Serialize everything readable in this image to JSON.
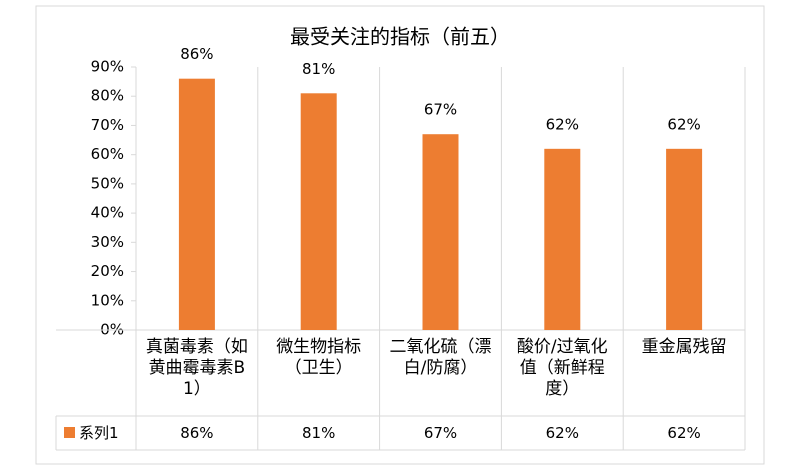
{
  "chart_data": {
    "type": "bar",
    "title": "最受关注的指标（前五）",
    "categories": [
      "真菌毒素（如黄曲霉毒素B1）",
      "微生物指标（卫生）",
      "二氧化硫（漂白/防腐）",
      "酸价/过氧化值（新鲜程度）",
      "重金属残留"
    ],
    "series": [
      {
        "name": "系列1",
        "color": "#ed7d31",
        "values": [
          86,
          81,
          67,
          62,
          62
        ],
        "value_labels": [
          "86%",
          "81%",
          "67%",
          "62%",
          "62%"
        ]
      }
    ],
    "ylim": [
      0,
      90
    ],
    "yticks": [
      {
        "value": 0,
        "label": "0%"
      },
      {
        "value": 10,
        "label": "10%"
      },
      {
        "value": 20,
        "label": "20%"
      },
      {
        "value": 30,
        "label": "30%"
      },
      {
        "value": 40,
        "label": "40%"
      },
      {
        "value": 50,
        "label": "50%"
      },
      {
        "value": 60,
        "label": "60%"
      },
      {
        "value": 70,
        "label": "70%"
      },
      {
        "value": 80,
        "label": "80%"
      },
      {
        "value": 90,
        "label": "90%"
      }
    ]
  }
}
